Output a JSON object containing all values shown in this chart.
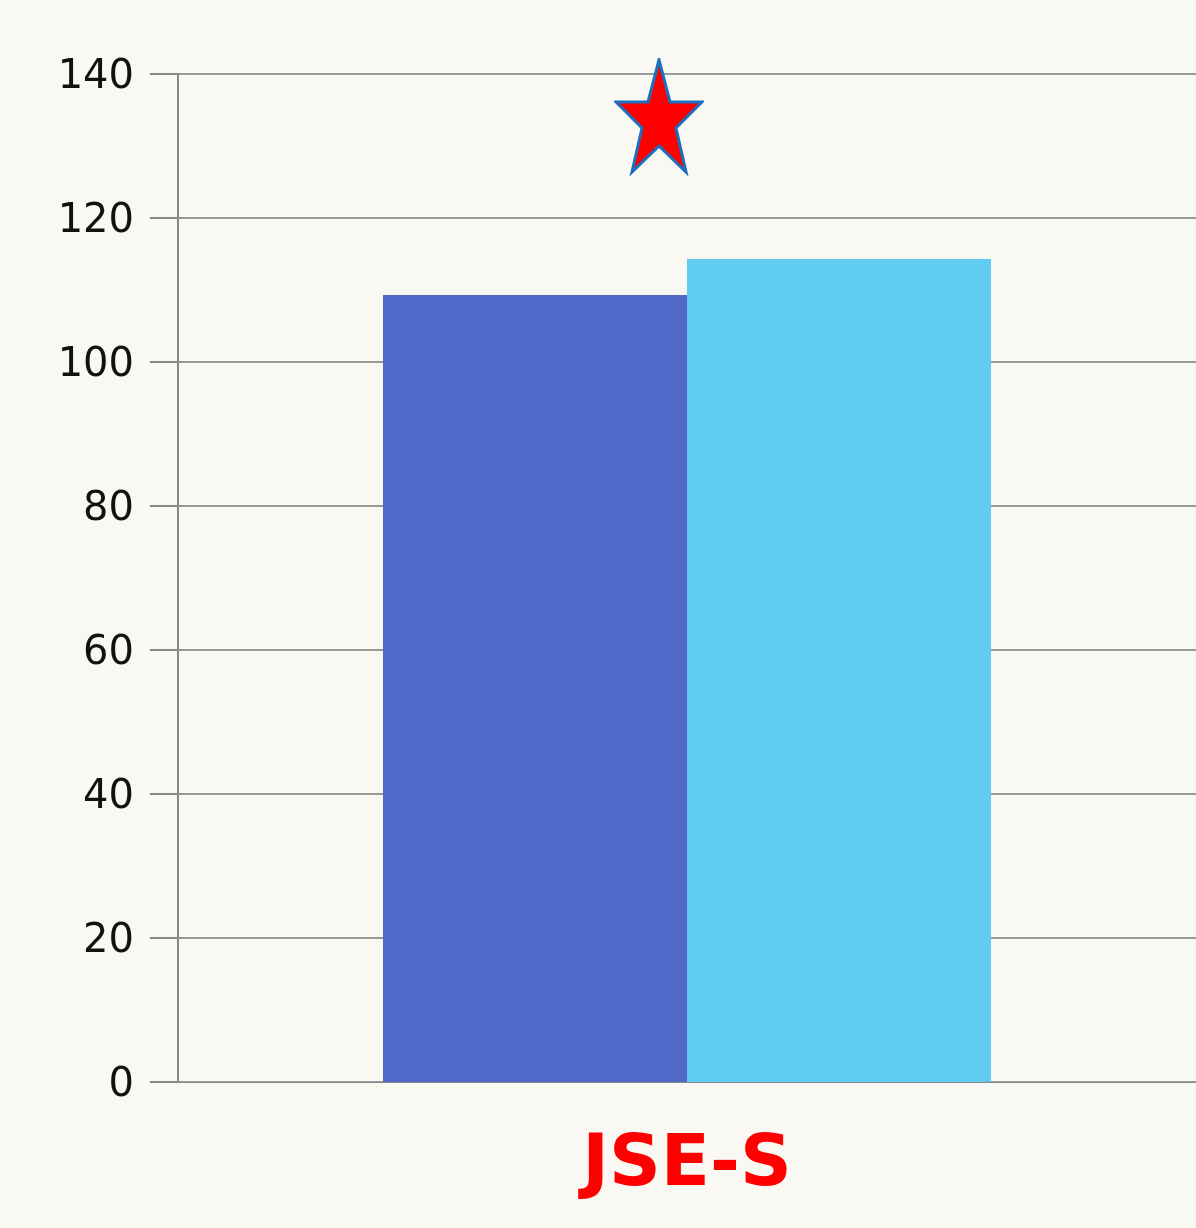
{
  "chart_data": {
    "type": "bar",
    "categories": [
      "JSE-S"
    ],
    "series": [
      {
        "color": "#5068c8",
        "values": [
          109.3
        ]
      },
      {
        "color": "#60ccf2",
        "values": [
          114.3
        ]
      }
    ],
    "ylim": [
      0,
      140
    ],
    "yticks": [
      0,
      20,
      40,
      60,
      80,
      100,
      120,
      140
    ],
    "grid": "y"
  }
}
